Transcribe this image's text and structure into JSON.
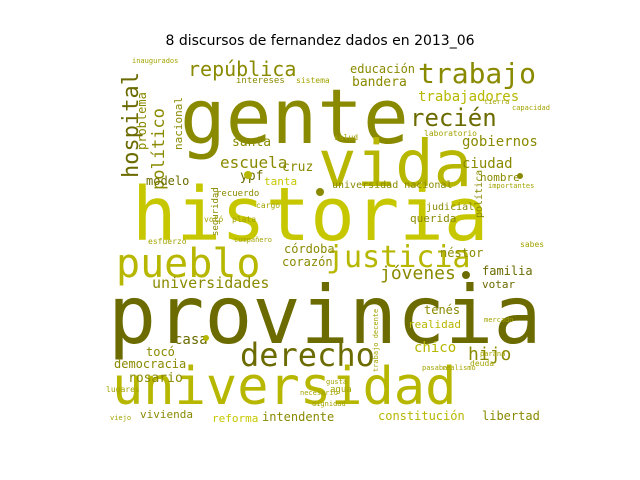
{
  "title": "8 discursos de fernandez dados en 2013_06",
  "colors": {
    "dark": "#6b6b00",
    "olive": "#8a8a00",
    "mid": "#a3a300",
    "bright": "#b7b700",
    "light": "#c7c700"
  },
  "words": [
    "provincia",
    "historia",
    "universidad",
    "gente",
    "vida",
    "pueblo",
    "derecho",
    "justicia",
    "trabajo",
    "república",
    "recién",
    "hospital",
    "escuela",
    "universidades",
    "jóvenes",
    "hijo",
    "político",
    "problema",
    "nacional",
    "educación",
    "bandera",
    "trabajadores",
    "gobiernos",
    "ciudad",
    "santa",
    "cruz",
    "ypf",
    "modelo",
    "tanta",
    "universidad nacional",
    "córdoba",
    "corazón",
    "néstor",
    "familia",
    "votar",
    "casa",
    "tocó",
    "rosario",
    "democracia",
    "chico",
    "tenés",
    "realidad",
    "vivienda",
    "reforma",
    "intendente",
    "constitución",
    "libertad",
    "nombre",
    "política",
    "judicial",
    "querida",
    "recuerdo",
    "laboratorio",
    "salud",
    "agua",
    "sabes",
    "importantes",
    "inaugurados",
    "intereses",
    "sistema",
    "seguridad",
    "cargo",
    "esfuerzo",
    "compañero",
    "mercado",
    "lugares",
    "votó",
    "plata",
    "deuda",
    "capacidad",
    "tierra",
    "trabajo decente",
    "realismo",
    "necesario",
    "paraná",
    "pasaba",
    "dignidad",
    "viejo",
    "gusta"
  ]
}
